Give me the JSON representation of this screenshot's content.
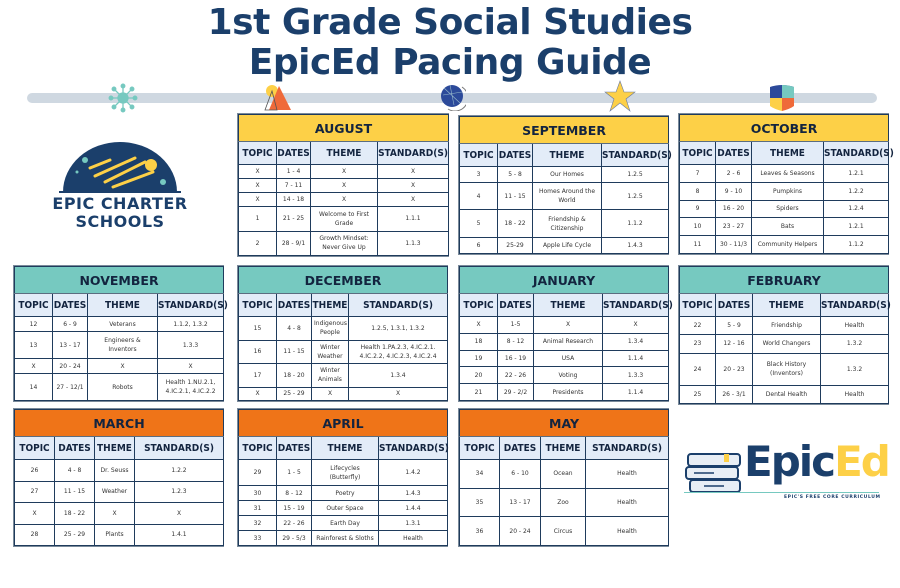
{
  "header": {
    "title_line1": "1st Grade Social Studies",
    "title_line2": "EpicEd Pacing Guide"
  },
  "logos": {
    "school": {
      "line1": "EPIC CHARTER",
      "line2": "SCHOOLS"
    },
    "epiced": {
      "name_part1": "Epic",
      "name_part2": "Ed",
      "tagline": "EPIC'S FREE CORE CURRICULUM"
    }
  },
  "colors": {
    "navy": "#1b3f6b",
    "yellow": "#fdd047",
    "teal": "#76c9c0",
    "orange": "#ef7418",
    "header_row": "#e3ecf8"
  },
  "timeline_icons": [
    "virus-icon",
    "shapes-icon",
    "globe-icon",
    "star-icon",
    "shield-icon"
  ],
  "columns": [
    "TOPIC",
    "DATES",
    "THEME",
    "STANDARD(S)"
  ],
  "months": [
    {
      "name": "AUGUST",
      "color": "#fdd047",
      "rows": [
        [
          "X",
          "1 - 4",
          "X",
          "X"
        ],
        [
          "X",
          "7 - 11",
          "X",
          "X"
        ],
        [
          "X",
          "14 - 18",
          "X",
          "X"
        ],
        [
          "1",
          "21 - 25",
          "Welcome to First Grade",
          "1.1.1"
        ],
        [
          "2",
          "28 - 9/1",
          "Growth Mindset: Never Give Up",
          "1.1.3"
        ]
      ]
    },
    {
      "name": "SEPTEMBER",
      "color": "#fdd047",
      "rows": [
        [
          "3",
          "5 - 8",
          "Our Homes",
          "1.2.5"
        ],
        [
          "4",
          "11 - 15",
          "Homes Around the World",
          "1.2.5"
        ],
        [
          "5",
          "18 - 22",
          "Friendship & Citizenship",
          "1.1.2"
        ],
        [
          "6",
          "25-29",
          "Apple Life Cycle",
          "1.4.3"
        ]
      ]
    },
    {
      "name": "OCTOBER",
      "color": "#fdd047",
      "rows": [
        [
          "7",
          "2 - 6",
          "Leaves & Seasons",
          "1.2.1"
        ],
        [
          "8",
          "9 - 10",
          "Pumpkins",
          "1.2.2"
        ],
        [
          "9",
          "16 - 20",
          "Spiders",
          "1.2.4"
        ],
        [
          "10",
          "23 - 27",
          "Bats",
          "1.2.1"
        ],
        [
          "11",
          "30 - 11/3",
          "Community Helpers",
          "1.1.2"
        ]
      ]
    },
    {
      "name": "NOVEMBER",
      "color": "#76c9c0",
      "rows": [
        [
          "12",
          "6 - 9",
          "Veterans",
          "1.1.2, 1.3.2"
        ],
        [
          "13",
          "13 - 17",
          "Engineers & Inventors",
          "1.3.3"
        ],
        [
          "X",
          "20 - 24",
          "X",
          "X"
        ],
        [
          "14",
          "27 - 12/1",
          "Robots",
          "Health 1.NU.2.1, 4.IC.2.1, 4.IC.2.2"
        ]
      ]
    },
    {
      "name": "DECEMBER",
      "color": "#76c9c0",
      "rows": [
        [
          "15",
          "4 - 8",
          "Indigenous People",
          "1.2.5, 1.3.1, 1.3.2"
        ],
        [
          "16",
          "11 - 15",
          "Winter Weather",
          "Health 1.PA.2.3, 4.IC.2.1. 4.IC.2.2, 4.IC.2.3, 4.IC.2.4"
        ],
        [
          "17",
          "18 - 20",
          "Winter Animals",
          "1.3.4"
        ],
        [
          "X",
          "25 - 29",
          "X",
          "X"
        ]
      ]
    },
    {
      "name": "JANUARY",
      "color": "#76c9c0",
      "rows": [
        [
          "X",
          "1-5",
          "X",
          "X"
        ],
        [
          "18",
          "8 - 12",
          "Animal Research",
          "1.3.4"
        ],
        [
          "19",
          "16 - 19",
          "USA",
          "1.1.4"
        ],
        [
          "20",
          "22 - 26",
          "Voting",
          "1.3.3"
        ],
        [
          "21",
          "29 - 2/2",
          "Presidents",
          "1.1.4"
        ]
      ]
    },
    {
      "name": "FEBRUARY",
      "color": "#76c9c0",
      "rows": [
        [
          "22",
          "5 - 9",
          "Friendship",
          "Health"
        ],
        [
          "23",
          "12 - 16",
          "World Changers",
          "1.3.2"
        ],
        [
          "24",
          "20 - 23",
          "Black History (Inventors)",
          "1.3.2"
        ],
        [
          "25",
          "26 - 3/1",
          "Dental Health",
          "Health"
        ]
      ]
    },
    {
      "name": "MARCH",
      "color": "#ef7418",
      "rows": [
        [
          "26",
          "4 - 8",
          "Dr. Seuss",
          "1.2.2"
        ],
        [
          "27",
          "11 - 15",
          "Weather",
          "1.2.3"
        ],
        [
          "X",
          "18 - 22",
          "X",
          "X"
        ],
        [
          "28",
          "25 - 29",
          "Plants",
          "1.4.1"
        ]
      ]
    },
    {
      "name": "APRIL",
      "color": "#ef7418",
      "rows": [
        [
          "29",
          "1 - 5",
          "Lifecycles (Butterfly)",
          "1.4.2"
        ],
        [
          "30",
          "8 - 12",
          "Poetry",
          "1.4.3"
        ],
        [
          "31",
          "15 - 19",
          "Outer Space",
          "1.4.4"
        ],
        [
          "32",
          "22 - 26",
          "Earth Day",
          "1.3.1"
        ],
        [
          "33",
          "29 - 5/3",
          "Rainforest & Sloths",
          "Health"
        ]
      ]
    },
    {
      "name": "MAY",
      "color": "#ef7418",
      "rows": [
        [
          "34",
          "6 - 10",
          "Ocean",
          "Health"
        ],
        [
          "35",
          "13 - 17",
          "Zoo",
          "Health"
        ],
        [
          "36",
          "20 - 24",
          "Circus",
          "Health"
        ]
      ]
    }
  ]
}
